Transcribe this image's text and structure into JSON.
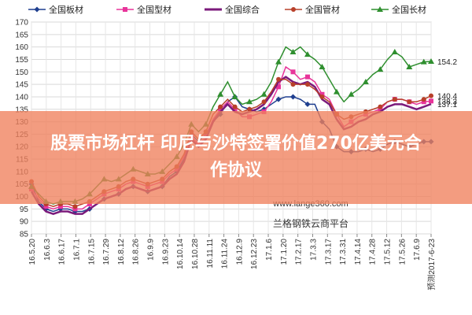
{
  "chart_data": {
    "type": "line",
    "title": "",
    "xlabel": "",
    "ylabel": "",
    "ylim": [
      85,
      170
    ],
    "yticks": [
      85,
      90,
      95,
      100,
      105,
      110,
      115,
      120,
      125,
      130,
      135,
      140,
      145,
      150,
      155,
      160,
      165,
      170
    ],
    "x_tick_labels": [
      "16.5.20",
      "16.6.3",
      "16.6.17",
      "16.7.1",
      "16.7.15",
      "16.7.29",
      "16.8.12",
      "16.8.26",
      "16.9.9",
      "16.9.23",
      "16.10.14",
      "16.10.28",
      "16.11.11",
      "16.11.24",
      "16.12.9",
      "16.12.23",
      "17.1.6",
      "17.1.20",
      "17.2.17",
      "17.3.3",
      "17.3.17",
      "17.3.31",
      "17.4.14",
      "17.4.28",
      "17.5.12",
      "17.5.26",
      "17.6.9",
      "预测2017-6-23"
    ],
    "grid": true,
    "legend_position": "top",
    "series": [
      {
        "name": "全国板材",
        "color": "#1f3f8f",
        "marker": "diamond",
        "values": [
          105,
          98,
          95,
          94,
          95,
          95,
          94,
          94,
          95,
          97,
          99,
          100,
          101,
          103,
          104,
          103,
          102,
          103,
          104,
          108,
          110,
          115,
          125,
          122,
          125,
          130,
          133,
          138,
          140,
          136,
          135,
          134,
          135,
          137,
          139,
          140,
          140,
          139,
          137,
          137,
          130,
          127,
          120,
          118,
          118,
          118,
          119,
          118,
          119,
          121,
          122,
          121,
          120,
          121,
          122,
          122
        ],
        "end_label": ""
      },
      {
        "name": "全国型材",
        "color": "#e8349a",
        "marker": "square",
        "values": [
          103,
          99,
          96,
          95,
          96,
          96,
          95,
          95,
          97,
          99,
          101,
          102,
          103,
          105,
          106,
          105,
          104,
          105,
          106,
          109,
          111,
          116,
          124,
          121,
          124,
          131,
          135,
          138,
          135,
          132,
          132,
          133,
          134,
          138,
          144,
          152,
          150,
          147,
          148,
          146,
          141,
          139,
          133,
          128,
          130,
          132,
          133,
          134,
          135,
          138,
          139,
          139,
          138,
          137,
          138,
          138.3
        ],
        "end_label": "138.3"
      },
      {
        "name": "全国综合",
        "color": "#7b1a7b",
        "marker": "none",
        "values": [
          102,
          97,
          94,
          93,
          94,
          94,
          93,
          93,
          95,
          97,
          99,
          100,
          101,
          103,
          104,
          103,
          102,
          103,
          104,
          107,
          109,
          114,
          123,
          120,
          123,
          130,
          134,
          137,
          134,
          133,
          134,
          135,
          137,
          141,
          146,
          148,
          146,
          145,
          146,
          144,
          139,
          137,
          131,
          127,
          128,
          130,
          131,
          133,
          134,
          136,
          137,
          137,
          136,
          135,
          136,
          137.1
        ],
        "end_label": "137.1"
      },
      {
        "name": "全国管材",
        "color": "#b8402a",
        "marker": "circle",
        "values": [
          106,
          100,
          97,
          96,
          97,
          97,
          96,
          97,
          98,
          100,
          102,
          103,
          104,
          106,
          107,
          106,
          105,
          106,
          107,
          110,
          112,
          117,
          126,
          123,
          126,
          133,
          136,
          139,
          136,
          134,
          135,
          136,
          138,
          142,
          147,
          147,
          145,
          145,
          145,
          143,
          140,
          138,
          133,
          131,
          132,
          133,
          134,
          135,
          136,
          138,
          139,
          139,
          138,
          138,
          139,
          140.4
        ],
        "end_label": "140.4"
      },
      {
        "name": "全国长材",
        "color": "#2f8f2f",
        "marker": "triangle",
        "values": [
          104,
          101,
          98,
          97,
          98,
          98,
          98,
          99,
          101,
          104,
          107,
          106,
          107,
          109,
          111,
          110,
          109,
          109,
          110,
          113,
          116,
          121,
          129,
          126,
          129,
          136,
          141,
          146,
          140,
          137,
          138,
          139,
          141,
          146,
          154,
          160,
          158,
          160,
          157,
          155,
          152,
          147,
          142,
          138,
          141,
          143,
          146,
          149,
          151,
          155,
          158,
          156,
          152,
          153,
          154,
          154.2
        ],
        "end_label": "154.2"
      }
    ],
    "annotations": [
      "www.lange360.com",
      "兰格钢铁云商平台"
    ]
  },
  "overlay": {
    "line1": "股票市场杠杆 印尼与沙特签署价值270亿美元合",
    "line2": "作协议"
  }
}
